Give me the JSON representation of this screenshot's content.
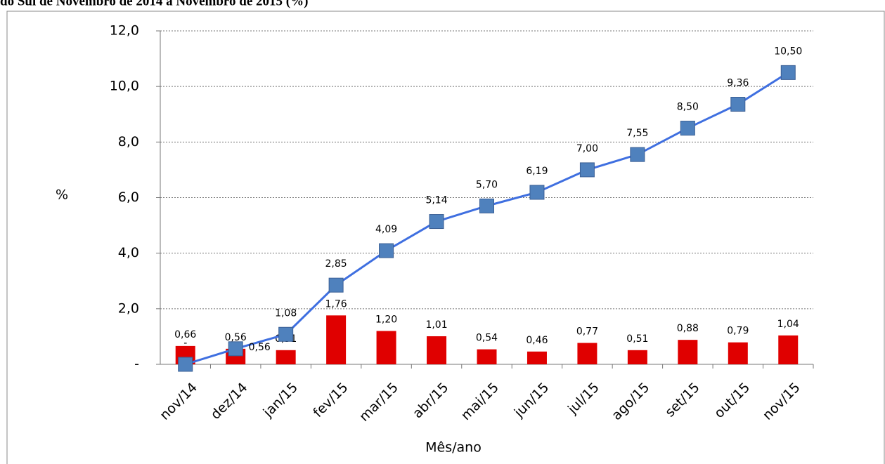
{
  "chart_data": {
    "type": "bar_line",
    "title": "do Sul de Novembro de 2014 a Novembro de 2015 (%)",
    "y_label": "%",
    "x_label": "Mês/ano",
    "categories": [
      "nov/14",
      "dez/14",
      "jan/15",
      "fev/15",
      "mar/15",
      "abr/15",
      "mai/15",
      "jun/15",
      "jul/15",
      "ago/15",
      "set/15",
      "out/15",
      "nov/15"
    ],
    "series": [
      {
        "type": "bar",
        "color": "#e00000",
        "values": [
          0.66,
          0.56,
          0.51,
          1.76,
          1.2,
          1.01,
          0.54,
          0.46,
          0.77,
          0.51,
          0.88,
          0.79,
          1.04
        ],
        "value_labels": [
          "0,66",
          "0,56",
          "0,51",
          "1,76",
          "1,20",
          "1,01",
          "0,54",
          "0,46",
          "0,77",
          "0,51",
          "0,88",
          "0,79",
          "1,04"
        ]
      },
      {
        "type": "line",
        "color": "#3f6fe0",
        "marker_color": "#4f81bd",
        "values": [
          0,
          0.56,
          1.08,
          2.85,
          4.09,
          5.14,
          5.7,
          6.19,
          7.0,
          7.55,
          8.5,
          9.36,
          10.5
        ],
        "value_labels": [
          "-",
          "0,56",
          "1,08",
          "2,85",
          "4,09",
          "5,14",
          "5,70",
          "6,19",
          "7,00",
          "7,55",
          "8,50",
          "9,36",
          "10,50"
        ]
      }
    ],
    "ylim": [
      0,
      12
    ],
    "yticks": [
      {
        "value": 0,
        "label": "-"
      },
      {
        "value": 2,
        "label": "2,0"
      },
      {
        "value": 4,
        "label": "4,0"
      },
      {
        "value": 6,
        "label": "6,0"
      },
      {
        "value": 8,
        "label": "8,0"
      },
      {
        "value": 10,
        "label": "10,0"
      },
      {
        "value": 12,
        "label": "12,0"
      }
    ],
    "grid": true
  }
}
